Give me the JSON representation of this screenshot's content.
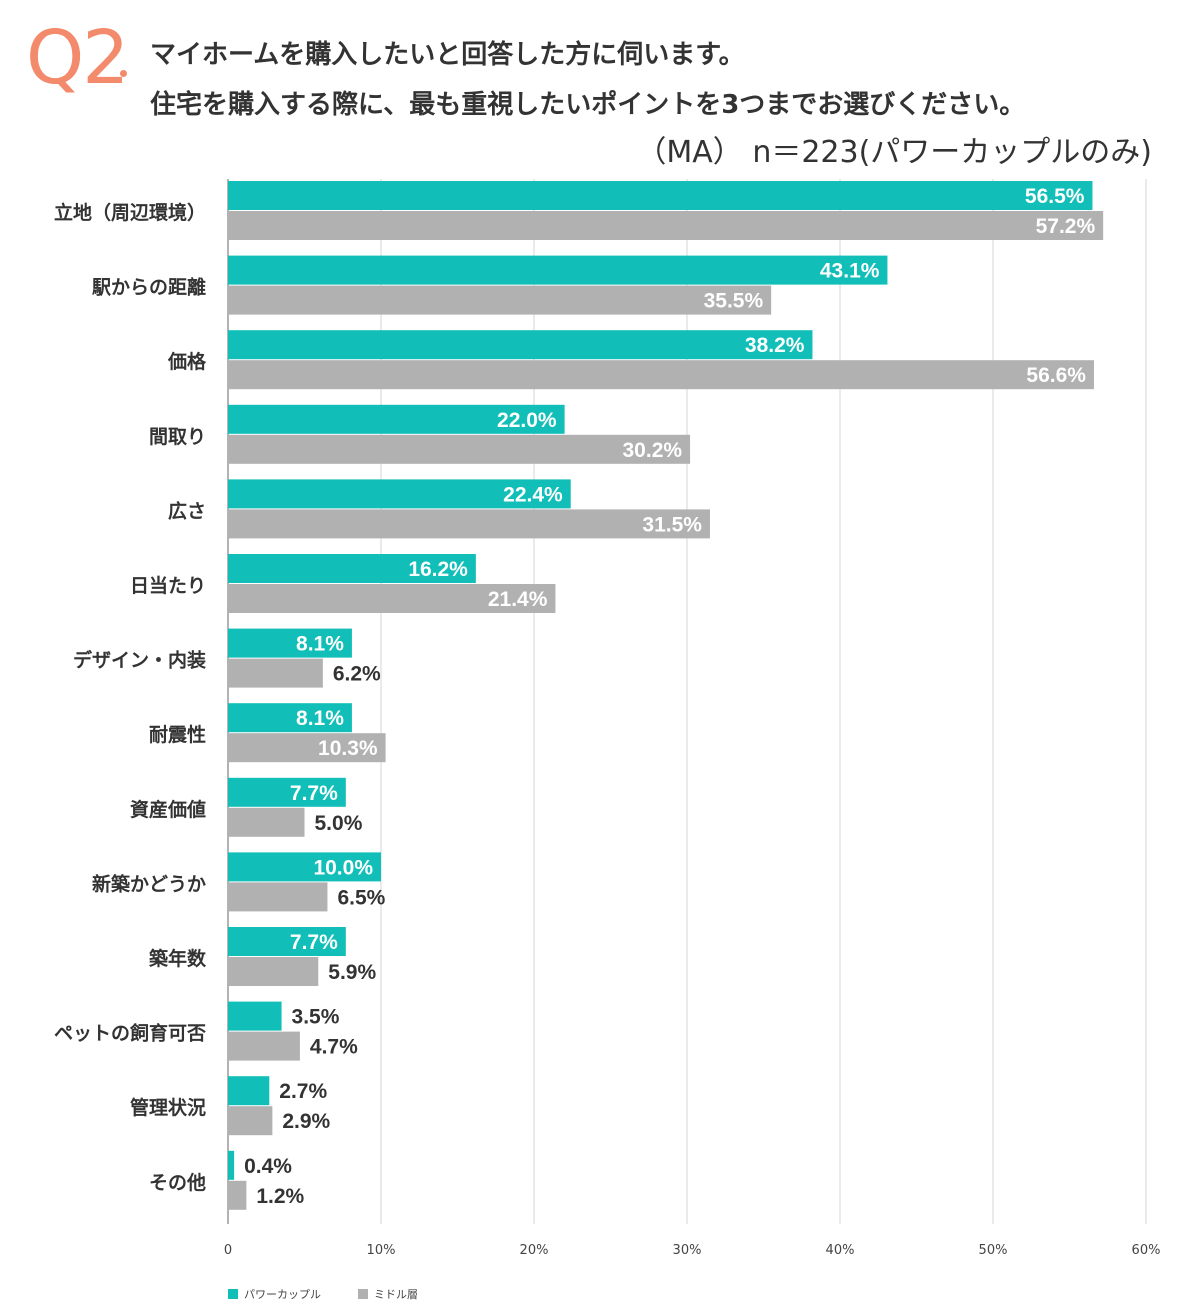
{
  "header": {
    "q_number": "Q2",
    "question_line1": "マイホームを購入したいと回答した方に伺います。",
    "question_line2": "住宅を購入する際に、最も重視したいポイントを3つまでお選びください。",
    "sample_note": "（MA） n＝223(パワーカップルのみ)"
  },
  "colors": {
    "primary": "#12bfb8",
    "secondary": "#b1b1b1",
    "accent": "#f28a6b"
  },
  "chart_data": {
    "type": "bar",
    "orientation": "horizontal",
    "categories": [
      "立地（周辺環境）",
      "駅からの距離",
      "価格",
      "間取り",
      "広さ",
      "日当たり",
      "デザイン・内装",
      "耐震性",
      "資産価値",
      "新築かどうか",
      "築年数",
      "ペットの飼育可否",
      "管理状況",
      "その他"
    ],
    "series": [
      {
        "name": "パワーカップル",
        "values": [
          56.5,
          43.1,
          38.2,
          22.0,
          22.4,
          16.2,
          8.1,
          8.1,
          7.7,
          10.0,
          7.7,
          3.5,
          2.7,
          0.4
        ]
      },
      {
        "name": "ミドル層",
        "values": [
          57.2,
          35.5,
          56.6,
          30.2,
          31.5,
          21.4,
          6.2,
          10.3,
          5.0,
          6.5,
          5.9,
          4.7,
          2.9,
          1.2
        ]
      }
    ],
    "value_labels": {
      "パワーカップル": [
        "56.5%",
        "43.1%",
        "38.2%",
        "22.0%",
        "22.4%",
        "16.2%",
        "8.1%",
        "8.1%",
        "7.7%",
        "10.0%",
        "7.7%",
        "3.5%",
        "2.7%",
        "0.4%"
      ],
      "ミドル層": [
        "57.2%",
        "35.5%",
        "56.6%",
        "30.2%",
        "31.5%",
        "21.4%",
        "6.2%",
        "10.3%",
        "5.0%",
        "6.5%",
        "5.9%",
        "4.7%",
        "2.9%",
        "1.2%"
      ]
    },
    "xticks": [
      "0",
      "10%",
      "20%",
      "30%",
      "40%",
      "50%",
      "60%"
    ],
    "xlim": [
      0,
      60
    ],
    "grid": true,
    "legend_position": "bottom-left"
  }
}
